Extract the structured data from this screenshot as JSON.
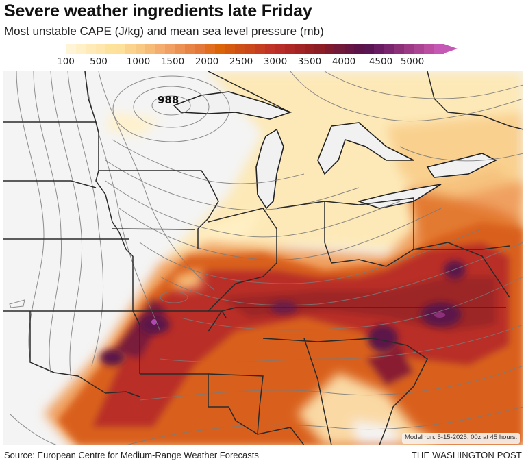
{
  "header": {
    "title": "Severe weather ingredients late Friday",
    "subtitle": "Most unstable CAPE (J/kg) and mean sea level pressure (mb)"
  },
  "legend": {
    "units": "J/kg",
    "ticks": [
      "100",
      "500",
      "1000",
      "1500",
      "2000",
      "2500",
      "3000",
      "3500",
      "4000",
      "4500",
      "5000"
    ],
    "colors": [
      "#fff5d6",
      "#fff0c8",
      "#ffeab8",
      "#ffe6ac",
      "#fde29c",
      "#fde09a",
      "#fbd38c",
      "#f9c882",
      "#f7bb78",
      "#f4ad6e",
      "#f19f62",
      "#ec9154",
      "#e88346",
      "#e4783a",
      "#e06e1e",
      "#dc6408",
      "#d5590e",
      "#cf5016",
      "#ca481c",
      "#c53e22",
      "#c03428",
      "#b82d28",
      "#ae2826",
      "#a32424",
      "#972022",
      "#8c1d24",
      "#7e1a2c",
      "#721838",
      "#661640",
      "#5c1448",
      "#5a1652",
      "#6a1c62",
      "#7a266e",
      "#8c3078",
      "#9c3a86",
      "#ac4494",
      "#bc4ea2",
      "#c558b4"
    ],
    "arrow_color": "#c558b4"
  },
  "map": {
    "background_color": "#f4f4f4",
    "pressure_label": "988",
    "model_run": "Model run: 5-15-2025, 00z at 45 hours."
  },
  "footer": {
    "source": "Source: European Centre for Medium-Range Weather Forecasts",
    "brand": "THE WASHINGTON POST"
  }
}
